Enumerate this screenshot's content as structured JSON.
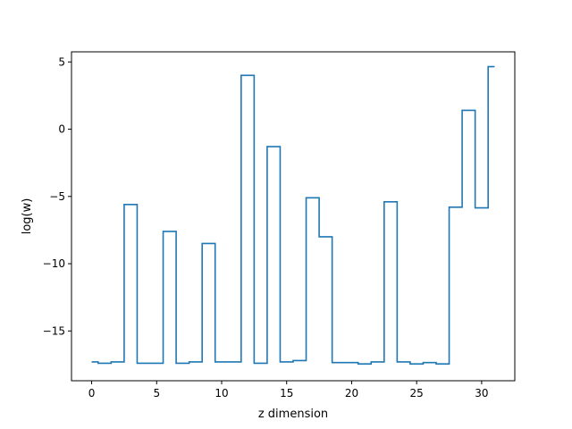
{
  "chart_data": {
    "type": "line",
    "drawstyle": "steps-mid",
    "title": "",
    "xlabel": "z dimension",
    "ylabel": "log(w)",
    "xlim": [
      -1.55,
      32.55
    ],
    "ylim": [
      -18.7,
      5.75
    ],
    "xticks": [
      0,
      5,
      10,
      15,
      20,
      25,
      30
    ],
    "yticks": [
      -15,
      -10,
      -5,
      0,
      5
    ],
    "grid": false,
    "legend": "none",
    "series": [
      {
        "color": "#1f77b4",
        "x": [
          0,
          1,
          2,
          3,
          4,
          5,
          6,
          7,
          8,
          9,
          10,
          11,
          12,
          13,
          14,
          15,
          16,
          17,
          18,
          19,
          20,
          21,
          22,
          23,
          24,
          25,
          26,
          27,
          28,
          29,
          30,
          31
        ],
        "values": [
          -17.3,
          -17.4,
          -17.3,
          -5.6,
          -17.4,
          -17.4,
          -7.6,
          -17.4,
          -17.3,
          -8.5,
          -17.3,
          -17.3,
          4.0,
          -17.4,
          -1.3,
          -17.3,
          -17.2,
          -5.1,
          -8.0,
          -17.35,
          -17.35,
          -17.45,
          -17.3,
          -5.4,
          -17.3,
          -17.45,
          -17.35,
          -17.45,
          -5.8,
          1.4,
          -5.85,
          4.65
        ]
      }
    ]
  }
}
